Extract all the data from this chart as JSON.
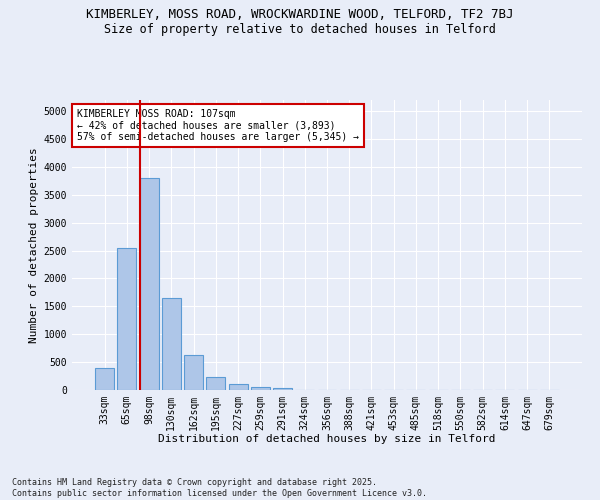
{
  "title": "KIMBERLEY, MOSS ROAD, WROCKWARDINE WOOD, TELFORD, TF2 7BJ",
  "subtitle": "Size of property relative to detached houses in Telford",
  "xlabel": "Distribution of detached houses by size in Telford",
  "ylabel": "Number of detached properties",
  "categories": [
    "33sqm",
    "65sqm",
    "98sqm",
    "130sqm",
    "162sqm",
    "195sqm",
    "227sqm",
    "259sqm",
    "291sqm",
    "324sqm",
    "356sqm",
    "388sqm",
    "421sqm",
    "453sqm",
    "485sqm",
    "518sqm",
    "550sqm",
    "582sqm",
    "614sqm",
    "647sqm",
    "679sqm"
  ],
  "values": [
    400,
    2550,
    3800,
    1650,
    620,
    230,
    105,
    60,
    35,
    0,
    0,
    0,
    0,
    0,
    0,
    0,
    0,
    0,
    0,
    0,
    0
  ],
  "bar_color": "#aec6e8",
  "bar_edge_color": "#5b9bd5",
  "vline_color": "#cc0000",
  "annotation_text": "KIMBERLEY MOSS ROAD: 107sqm\n← 42% of detached houses are smaller (3,893)\n57% of semi-detached houses are larger (5,345) →",
  "annotation_box_color": "#ffffff",
  "annotation_box_edge_color": "#cc0000",
  "ylim": [
    0,
    5200
  ],
  "yticks": [
    0,
    500,
    1000,
    1500,
    2000,
    2500,
    3000,
    3500,
    4000,
    4500,
    5000
  ],
  "footnote": "Contains HM Land Registry data © Crown copyright and database right 2025.\nContains public sector information licensed under the Open Government Licence v3.0.",
  "bg_color": "#e8edf8",
  "plot_bg_color": "#e8edf8",
  "grid_color": "#ffffff",
  "title_fontsize": 9,
  "subtitle_fontsize": 8.5,
  "axis_label_fontsize": 8,
  "tick_fontsize": 7,
  "annotation_fontsize": 7,
  "footnote_fontsize": 6
}
